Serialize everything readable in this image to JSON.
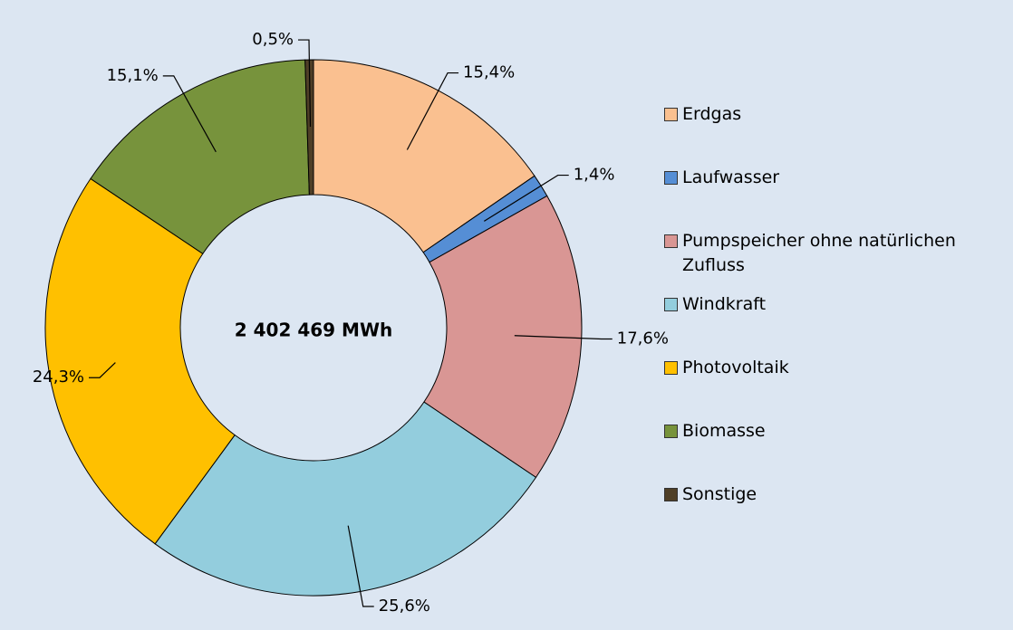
{
  "chart_data": {
    "type": "donut",
    "center_label": "2 402 469 MWh",
    "categories": [
      "Erdgas",
      "Laufwasser",
      "Pumpspeicher ohne natürlichen Zufluss",
      "Windkraft",
      "Photovoltaik",
      "Biomasse",
      "Sonstige"
    ],
    "values": [
      15.4,
      1.4,
      17.6,
      25.6,
      24.3,
      15.1,
      0.5
    ],
    "value_labels": [
      "15,4%",
      "1,4%",
      "17,6%",
      "25,6%",
      "24,3%",
      "15,1%",
      "0,5%"
    ],
    "colors": [
      "#fac090",
      "#558ed5",
      "#d99694",
      "#93cddd",
      "#ffc000",
      "#77933c",
      "#4f3f27"
    ],
    "legend": "right"
  }
}
